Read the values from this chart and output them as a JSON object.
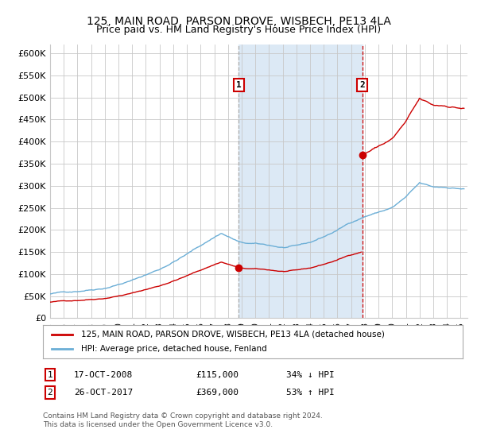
{
  "title1": "125, MAIN ROAD, PARSON DROVE, WISBECH, PE13 4LA",
  "title2": "Price paid vs. HM Land Registry's House Price Index (HPI)",
  "ylabel_ticks": [
    "£0",
    "£50K",
    "£100K",
    "£150K",
    "£200K",
    "£250K",
    "£300K",
    "£350K",
    "£400K",
    "£450K",
    "£500K",
    "£550K",
    "£600K"
  ],
  "ylim": [
    0,
    620000
  ],
  "xlim_start": 1995.0,
  "xlim_end": 2025.5,
  "sale1_date": 2008.79,
  "sale1_price": 115000,
  "sale1_label": "1",
  "sale2_date": 2017.81,
  "sale2_price": 369000,
  "sale2_label": "2",
  "hpi_color": "#6baed6",
  "sale_color": "#cc0000",
  "background_color": "#ffffff",
  "plot_bg_color": "#ffffff",
  "grid_color": "#c8c8c8",
  "legend_label_sale": "125, MAIN ROAD, PARSON DROVE, WISBECH, PE13 4LA (detached house)",
  "legend_label_hpi": "HPI: Average price, detached house, Fenland",
  "footnote": "Contains HM Land Registry data © Crown copyright and database right 2024.\nThis data is licensed under the Open Government Licence v3.0.",
  "shade_color": "#dce9f5",
  "ann1_date": "17-OCT-2008",
  "ann1_price": "£115,000",
  "ann1_hpi": "34% ↓ HPI",
  "ann2_date": "26-OCT-2017",
  "ann2_price": "£369,000",
  "ann2_hpi": "53% ↑ HPI"
}
